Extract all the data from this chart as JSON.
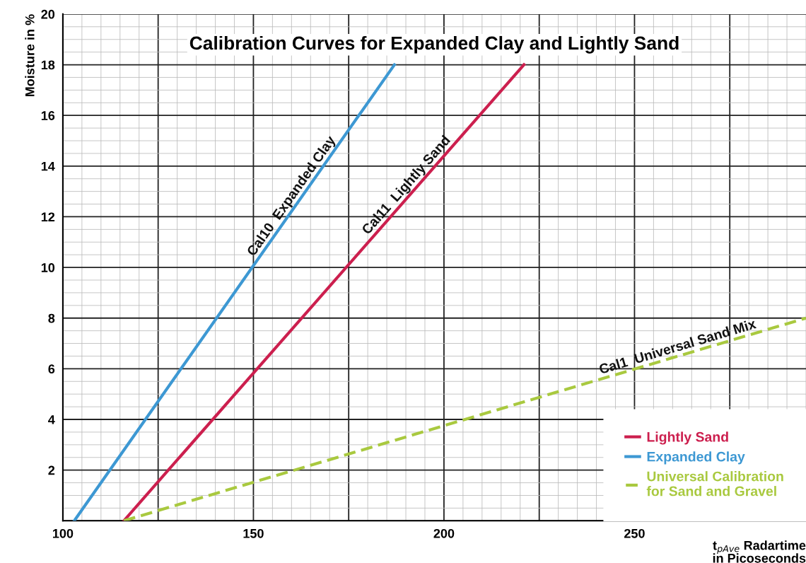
{
  "chart_data": {
    "type": "line",
    "title": "Calibration Curves for Expanded Clay and Lightly Sand",
    "xlabel": "t$_{pAve}$ Radartime\nin Picoseconds",
    "ylabel": "Moisture in %",
    "xlim": [
      100,
      295
    ],
    "ylim": [
      0,
      20
    ],
    "xticks": [
      100,
      {
        "value": 125,
        "label": null
      },
      150,
      {
        "value": 175,
        "label": null
      },
      200,
      {
        "value": 225,
        "label": null
      },
      250,
      {
        "value": 275,
        "label": null
      }
    ],
    "yticks": [
      {
        "value": 0,
        "label": null
      },
      2,
      4,
      6,
      8,
      10,
      12,
      14,
      16,
      18,
      20
    ],
    "grid": true,
    "legend": "bottom right",
    "marker": "none",
    "series": [
      {
        "name": "Lightly Sand",
        "color": "#cc1f4e",
        "x": [
          116,
          221
        ],
        "values": [
          0,
          18
        ],
        "line_style": "solid"
      },
      {
        "name": "Expanded Clay",
        "color": "#3d98d3",
        "x": [
          103,
          187
        ],
        "values": [
          0,
          18
        ],
        "line_style": "solid"
      },
      {
        "name": "Universal Calibration\nfor Sand and Gravel",
        "color": "#a9c93f",
        "x": [
          116,
          295
        ],
        "values": [
          0,
          8
        ],
        "line_style": "dashed"
      }
    ],
    "annotations": [
      {
        "text": "Cal11  Lightly Sand",
        "x": 192,
        "y": 13.0
      },
      {
        "text": "Cal10  Expanded Clay",
        "x": 162,
        "y": 12.6
      },
      {
        "text": "Cal1  Universal Sand Mix",
        "x": 262,
        "y": 6.5
      }
    ]
  }
}
